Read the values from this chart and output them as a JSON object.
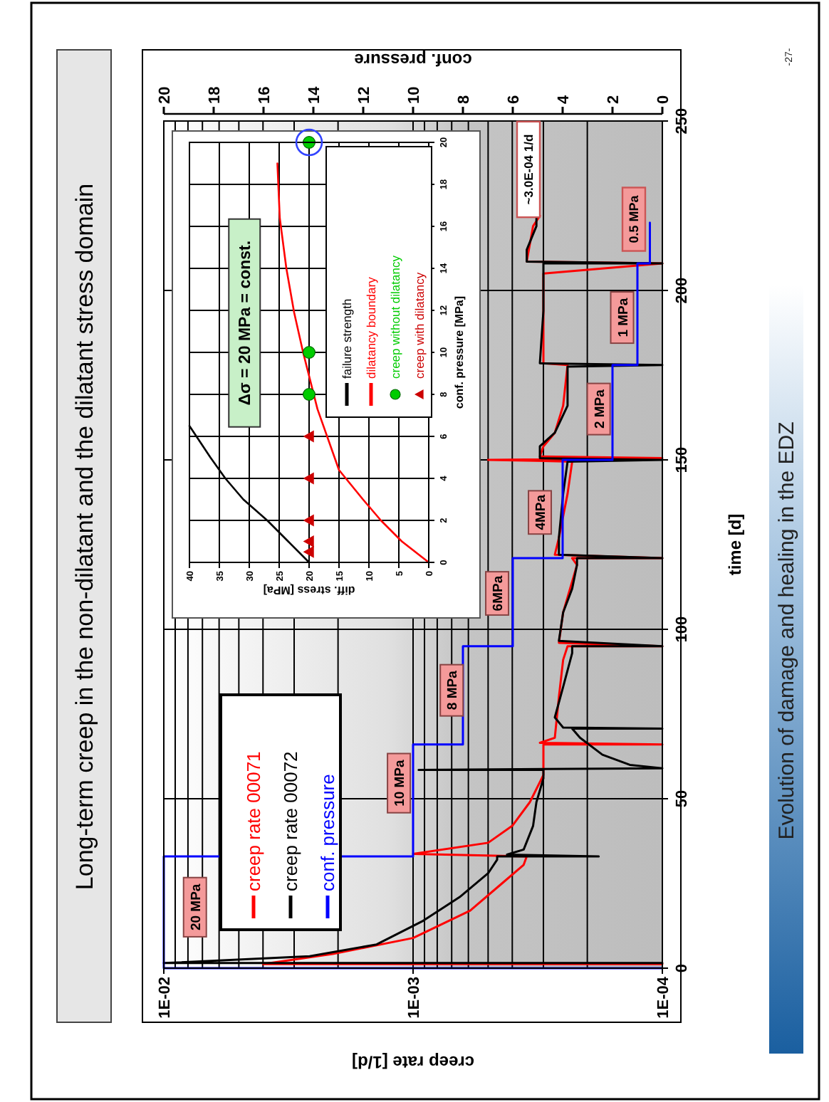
{
  "chart_data": [
    {
      "type": "line",
      "title": "Long-term creep in the non-dilatant and the dilatant stress domain",
      "xlabel": "creep rate [1/d]",
      "ylabel": "time [d]",
      "x2label": "conf. pressure",
      "log": "x",
      "grid": true,
      "legend": "bottom left",
      "xlim": [
        0.01,
        0.0001
      ],
      "xticks": [
        {
          "value": 0.01,
          "label": "1E-02"
        },
        {
          "value": 0.001,
          "label": "1E-03"
        },
        {
          "value": 0.0001,
          "label": "1E-04"
        }
      ],
      "x2lim": [
        20,
        0
      ],
      "x2ticks": [
        20,
        18,
        16,
        14,
        12,
        10,
        8,
        6,
        4,
        2,
        0
      ],
      "ylim": [
        0,
        250
      ],
      "yticks": [
        0,
        50,
        100,
        150,
        200,
        250
      ],
      "series": [
        {
          "name": "creep rate 00071",
          "color": "#ff0000",
          "values": [
            1.2,
            1.2,
            4.2,
            8.9,
            17,
            25,
            30.5,
            33,
            33.7,
            37,
            42,
            49,
            57,
            63,
            66,
            66,
            66.5,
            68,
            80,
            91,
            95,
            95,
            96,
            105,
            119,
            121,
            121,
            122,
            127,
            140,
            149.5,
            150,
            150.5,
            151,
            154,
            158,
            166,
            178,
            178.5,
            194,
            205,
            208,
            208.5,
            219,
            222
          ],
          "x": [
            0.0001,
            0.004,
            0.0021,
            0.001,
            0.00059,
            0.00044,
            0.00036,
            0.00035,
            0.001,
            0.0005,
            0.0004,
            0.00034,
            0.0003,
            0.0003,
            0.0003,
            0.0001,
            0.00031,
            0.00027,
            0.00026,
            0.00025,
            0.00024,
            0.0001,
            0.00026,
            0.00025,
            0.00022,
            0.00023,
            0.0001,
            0.00027,
            0.00026,
            0.00024,
            0.00023,
            0.0005,
            0.0001,
            0.00031,
            0.0003,
            0.00027,
            0.00025,
            0.00024,
            0.0003,
            0.0003,
            0.0003,
            0.0001,
            0.00035,
            0.00033,
            0.00031
          ]
        },
        {
          "name": "creep rate 00072",
          "color": "#000000",
          "values": [
            1.5,
            1.5,
            3.5,
            7,
            14,
            21,
            28,
            32,
            33,
            33,
            33.5,
            35,
            42,
            49,
            56,
            58.5,
            58.5,
            59,
            60,
            63,
            68,
            70.7,
            70.7,
            71,
            74,
            83,
            93,
            95,
            95,
            96.6,
            105,
            112,
            119,
            121,
            121,
            122,
            127,
            140,
            149.5,
            150,
            150.5,
            154,
            158,
            166,
            177.5,
            178,
            178.5,
            194,
            205,
            208,
            208,
            208.5,
            212,
            219,
            222
          ],
          "x": [
            0.0001,
            0.01,
            0.0026,
            0.0014,
            0.00091,
            0.00065,
            0.0005,
            0.00046,
            0.00046,
            0.00018,
            0.00042,
            0.00036,
            0.00033,
            0.00032,
            0.0003,
            0.0003,
            0.00095,
            0.0001,
            0.000135,
            0.000174,
            0.000214,
            0.00023,
            0.0001,
            0.00025,
            0.00027,
            0.00025,
            0.00023,
            0.00023,
            0.0001,
            0.00026,
            0.00025,
            0.00023,
            0.00022,
            0.00022,
            0.0001,
            0.00026,
            0.00026,
            0.00025,
            0.00024,
            0.0001,
            0.00031,
            0.00031,
            0.00027,
            0.00024,
            0.00024,
            0.0001,
            0.00031,
            0.0003,
            0.0003,
            0.0003,
            0.0001,
            0.00035,
            0.00035,
            0.00032,
            0.00032
          ]
        },
        {
          "name": "conf. pressure",
          "color": "#0000ff",
          "axis": "x2",
          "values": [
            0,
            0,
            33,
            33,
            66,
            66,
            95,
            95,
            121,
            121,
            150,
            150,
            178,
            178,
            208,
            208,
            220
          ],
          "x": [
            0,
            20,
            20,
            10,
            10,
            8,
            8,
            6,
            6,
            4,
            4,
            2,
            2,
            1,
            1,
            0.5,
            0.5
          ]
        }
      ],
      "annotations": [
        {
          "text": "20 MPa",
          "x": 0.0075,
          "y": 18
        },
        {
          "text": "10 MPa",
          "x": 0.00114,
          "y": 54.6
        },
        {
          "text": "8 MPa",
          "x": 0.0007,
          "y": 82
        },
        {
          "text": "6MPa",
          "x": 0.00046,
          "y": 110.6
        },
        {
          "text": "4MPa",
          "x": 0.00031,
          "y": 134.5
        },
        {
          "text": "2 MPa",
          "x": 0.00018,
          "y": 165
        },
        {
          "text": "1 MPa",
          "x": 0.000145,
          "y": 192
        },
        "0.5 MPa",
        "~3.0E-04 1/d",
        "Evolution of damage and healing in the EDZ",
        "-27-"
      ]
    },
    {
      "type": "line",
      "xlabel": "diff. stress [MPa]",
      "ylabel": "conf. pressure [MPa]",
      "grid": true,
      "legend": "top right",
      "xlim": [
        40,
        0
      ],
      "xticks": [
        40,
        35,
        30,
        25,
        20,
        15,
        10,
        5,
        0
      ],
      "ylim": [
        0,
        20
      ],
      "yticks": [
        0,
        2,
        4,
        6,
        8,
        10,
        12,
        14,
        16,
        18,
        20
      ],
      "series": [
        {
          "name": "failure strength",
          "color": "#000000",
          "x": [
            20,
            23.5,
            27,
            31,
            34,
            36.5,
            40
          ],
          "values": [
            0,
            1,
            2,
            3,
            4,
            5,
            6.5
          ]
        },
        {
          "name": "dilatancy boundary",
          "color": "#ff0000",
          "x": [
            0,
            4.5,
            8,
            11,
            15,
            18.6,
            21,
            22.5,
            23.8,
            24.9,
            25.3
          ],
          "values": [
            0,
            1,
            2,
            3,
            4.4,
            7.3,
            10,
            11.9,
            14,
            16.4,
            19
          ]
        },
        {
          "name": "creep without dilatancy",
          "color": "#00cc00",
          "type": "scatter",
          "marker": "circle",
          "x": [
            20,
            20,
            20
          ],
          "values": [
            8,
            10,
            20
          ]
        },
        {
          "name": "creep with dilatancy",
          "color": "#cc0000",
          "type": "scatter",
          "marker": "triangle",
          "x": [
            20,
            20,
            20,
            20,
            20
          ],
          "values": [
            0.5,
            1,
            2,
            4,
            6
          ]
        }
      ],
      "annotations": [
        "Δσ = 20 MPa = const."
      ]
    }
  ]
}
